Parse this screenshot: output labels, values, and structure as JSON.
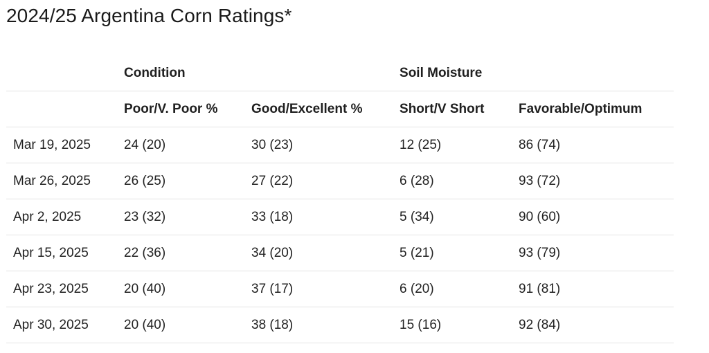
{
  "title": "2024/25 Argentina Corn Ratings*",
  "table": {
    "group_headers": {
      "blank": "",
      "condition": "Condition",
      "soil_moisture": "Soil Moisture"
    },
    "columns": [
      "",
      "Poor/V. Poor %",
      "Good/Excellent %",
      "Short/V Short",
      "Favorable/Optimum"
    ],
    "rows": [
      [
        "Mar 19, 2025",
        "24 (20)",
        "30 (23)",
        "12 (25)",
        "86 (74)"
      ],
      [
        "Mar 26, 2025",
        "26 (25)",
        "27 (22)",
        "6 (28)",
        "93 (72)"
      ],
      [
        "Apr 2, 2025",
        "23 (32)",
        "33 (18)",
        "5 (34)",
        "90 (60)"
      ],
      [
        "Apr 15, 2025",
        "22 (36)",
        "34 (20)",
        "5 (21)",
        "93 (79)"
      ],
      [
        "Apr 23, 2025",
        "20 (40)",
        "37 (17)",
        "6 (20)",
        "91 (81)"
      ],
      [
        "Apr 30, 2025",
        "20 (40)",
        "38 (18)",
        "15 (16)",
        "92 (84)"
      ]
    ]
  }
}
